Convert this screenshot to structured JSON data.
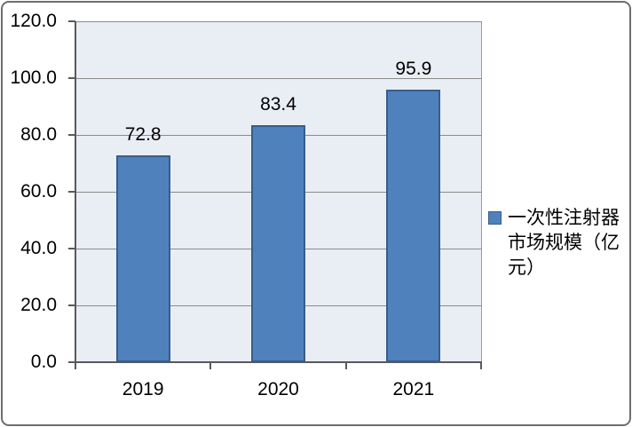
{
  "chart_data": {
    "type": "bar",
    "title": "",
    "categories": [
      "2019",
      "2020",
      "2021"
    ],
    "series": [
      {
        "name": "一次性注射器市场规模（亿元）",
        "values": [
          72.8,
          83.4,
          95.9
        ]
      }
    ],
    "data_labels": [
      "72.8",
      "83.4",
      "95.9"
    ],
    "xlabel": "",
    "ylabel": "",
    "ylim": [
      0,
      120
    ],
    "ytick_step": 20,
    "ytick_labels": [
      "0.0",
      "20.0",
      "40.0",
      "60.0",
      "80.0",
      "100.0",
      "120.0"
    ],
    "grid": true,
    "legend_position": "right"
  },
  "colors": {
    "bar_fill": "#4F81BD",
    "bar_border": "#385D8A",
    "plot_bg": "#E9EDF4",
    "gridline": "#8C8C8C",
    "axis": "#595959",
    "plot_border": "#999999",
    "text": "#000000",
    "frame_border": "#6E6E6E",
    "background": "#FFFFFF"
  }
}
